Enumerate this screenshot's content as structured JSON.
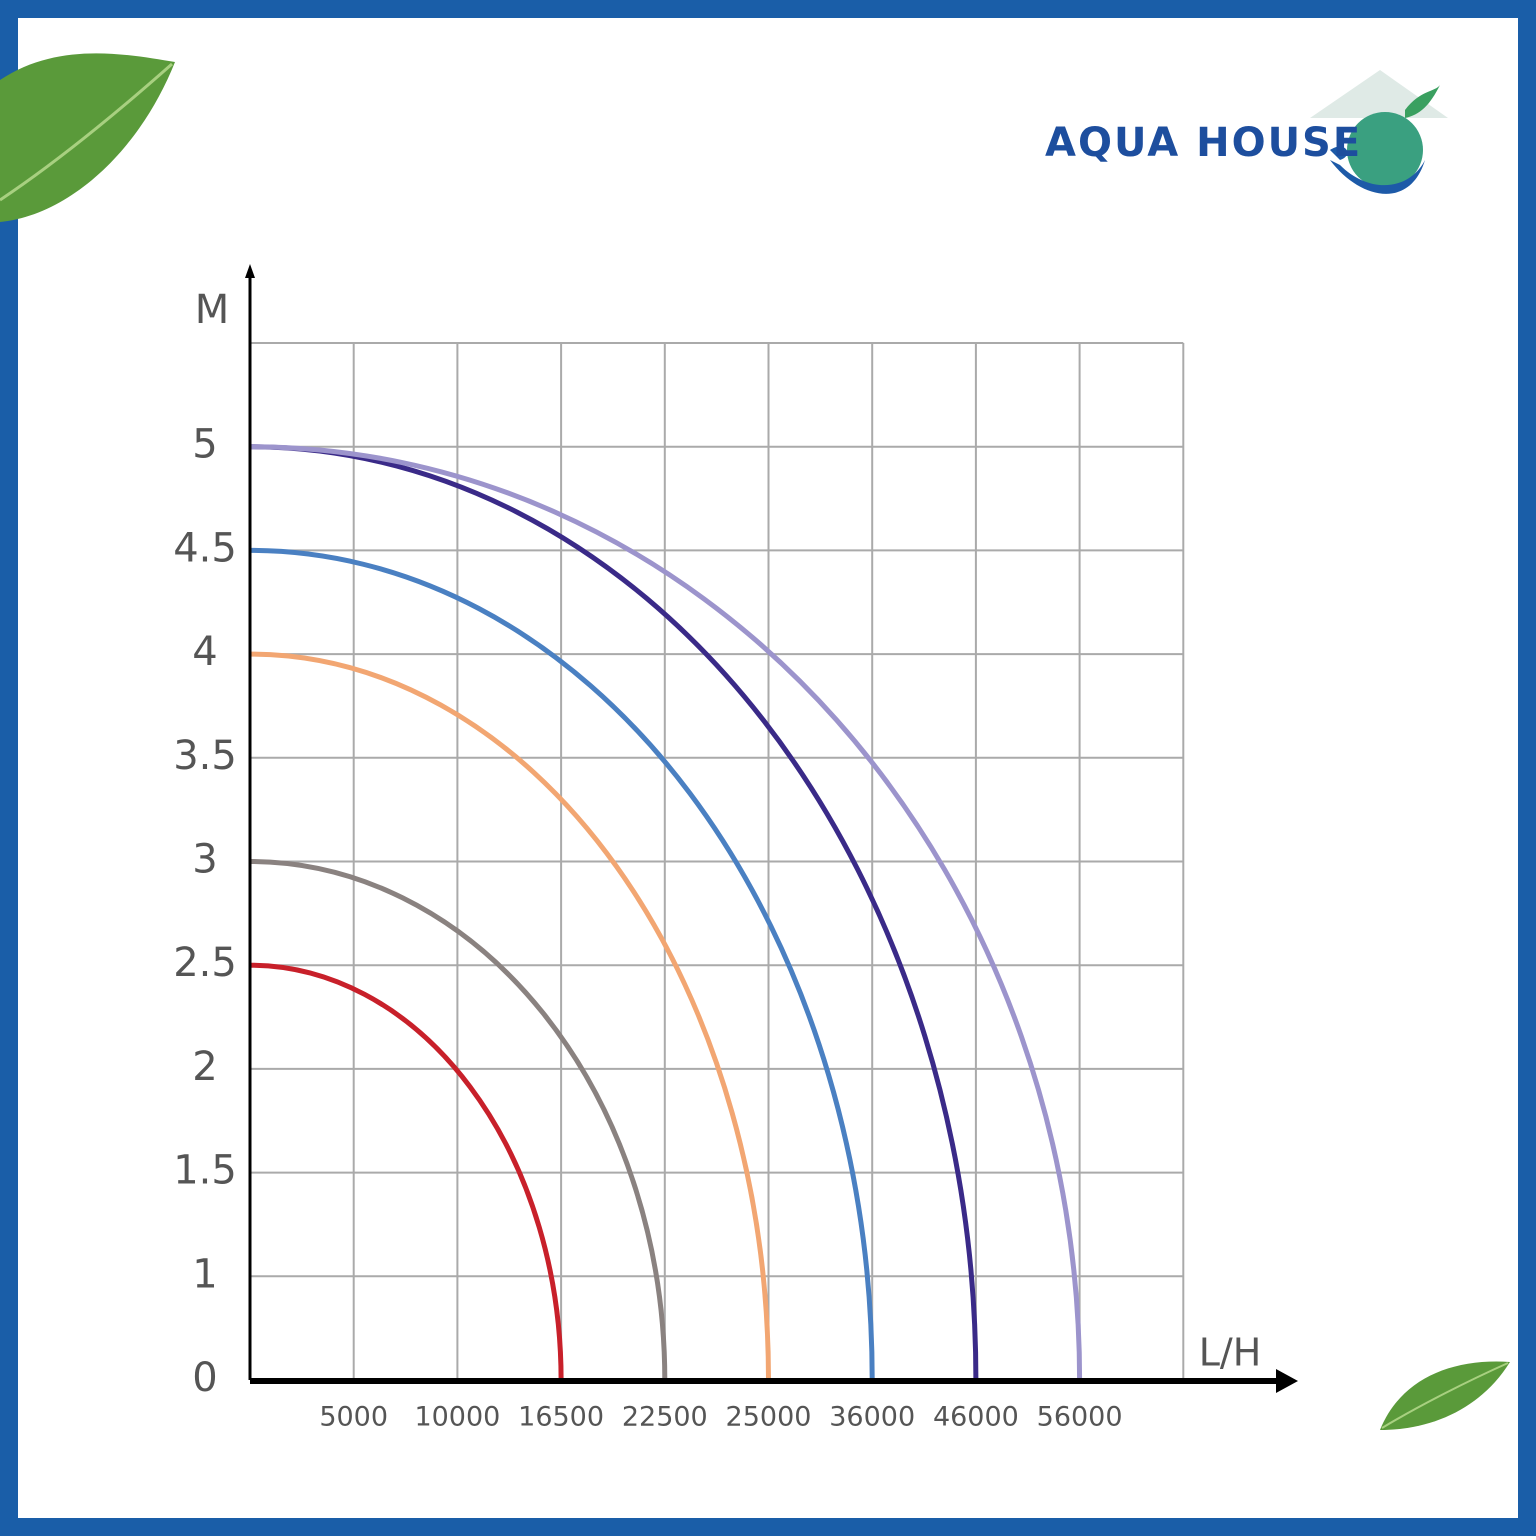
{
  "brand": "AQUA HOUSE",
  "chart_data": {
    "type": "line",
    "x_label": "L/H",
    "y_label": "M",
    "xticks": [
      5000,
      10000,
      16500,
      22500,
      25000,
      36000,
      46000,
      56000
    ],
    "yticks": [
      0,
      1,
      1.5,
      2,
      2.5,
      3,
      3.5,
      4,
      4.5,
      5
    ],
    "grid": true,
    "series": [
      {
        "color": "#c8202a",
        "x": [
          0,
          16500
        ],
        "values": [
          2.5,
          0
        ]
      },
      {
        "color": "#8a8280",
        "x": [
          0,
          22500
        ],
        "values": [
          3,
          0
        ]
      },
      {
        "color": "#f2a672",
        "x": [
          0,
          25000
        ],
        "values": [
          4,
          0
        ]
      },
      {
        "color": "#4a80c2",
        "x": [
          0,
          36000
        ],
        "values": [
          4.5,
          0
        ]
      },
      {
        "color": "#3a2a88",
        "x": [
          0,
          46000
        ],
        "values": [
          5,
          0
        ]
      },
      {
        "color": "#9c94cc",
        "x": [
          0,
          56000
        ],
        "values": [
          5,
          0
        ]
      }
    ]
  }
}
